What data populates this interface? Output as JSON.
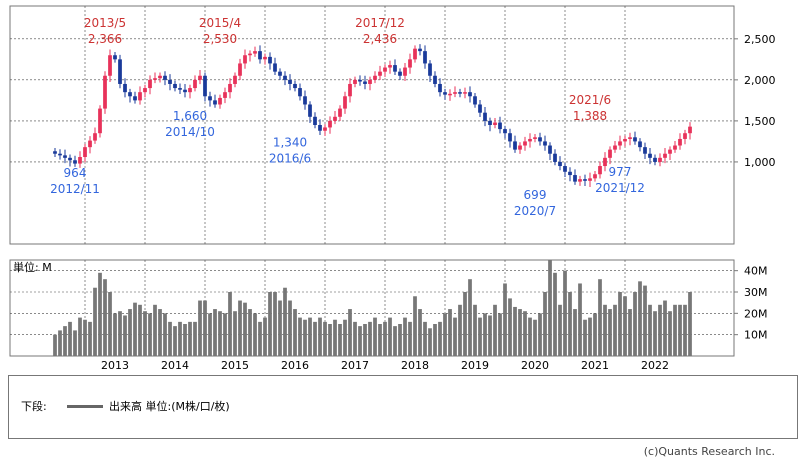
{
  "chart_data": [
    {
      "type": "candlestick",
      "panel": "price",
      "x_range": [
        "2012/07",
        "2022/10"
      ],
      "ylim": [
        0,
        2900
      ],
      "y_ticks": [
        1000,
        1500,
        2000,
        2500
      ],
      "y_tick_labels": [
        "1,000",
        "1,500",
        "2,000",
        "2,500"
      ],
      "grid": true,
      "colors": {
        "up": "#e8325a",
        "down": "#1a3a9a",
        "high_label": "#cc3333",
        "low_label": "#3366dd"
      },
      "monthly_close": [
        1100,
        1080,
        1050,
        1020,
        980,
        1060,
        1180,
        1260,
        1350,
        1650,
        2050,
        2300,
        2250,
        1950,
        1850,
        1800,
        1750,
        1850,
        1900,
        2000,
        2020,
        2050,
        2000,
        1950,
        1900,
        1880,
        1850,
        1900,
        2000,
        2050,
        1800,
        1750,
        1700,
        1780,
        1850,
        1950,
        2050,
        2200,
        2300,
        2320,
        2350,
        2250,
        2280,
        2200,
        2100,
        2050,
        2000,
        1950,
        1900,
        1800,
        1700,
        1550,
        1450,
        1380,
        1420,
        1500,
        1550,
        1650,
        1800,
        1950,
        2000,
        1980,
        1950,
        2000,
        2050,
        2100,
        2150,
        2180,
        2100,
        2050,
        2150,
        2250,
        2380,
        2350,
        2200,
        2050,
        1950,
        1850,
        1820,
        1830,
        1850,
        1840,
        1850,
        1800,
        1700,
        1600,
        1500,
        1450,
        1480,
        1400,
        1350,
        1250,
        1150,
        1200,
        1250,
        1280,
        1300,
        1250,
        1200,
        1100,
        1000,
        950,
        880,
        840,
        760,
        790,
        770,
        800,
        850,
        950,
        1050,
        1150,
        1200,
        1250,
        1280,
        1300,
        1250,
        1180,
        1100,
        1050,
        1000,
        1050,
        1100,
        1150,
        1200,
        1280,
        1350,
        1430
      ],
      "annotations": [
        {
          "kind": "high",
          "date": "2013/5",
          "value": "2,366"
        },
        {
          "kind": "high",
          "date": "2015/4",
          "value": "2,530"
        },
        {
          "kind": "high",
          "date": "2017/12",
          "value": "2,436"
        },
        {
          "kind": "high",
          "date": "2021/6",
          "value": "1,388"
        },
        {
          "kind": "low",
          "date": "2012/11",
          "value": "964"
        },
        {
          "kind": "low",
          "date": "2014/10",
          "value": "1,660"
        },
        {
          "kind": "low",
          "date": "2016/6",
          "value": "1,340"
        },
        {
          "kind": "low",
          "date": "2020/7",
          "value": "699"
        },
        {
          "kind": "low",
          "date": "2021/12",
          "value": "977"
        }
      ]
    },
    {
      "type": "bar",
      "panel": "volume",
      "unit_label": "単位: M",
      "ylim": [
        0,
        45
      ],
      "y_ticks": [
        10,
        20,
        30,
        40
      ],
      "y_tick_labels": [
        "10M",
        "20M",
        "30M",
        "40M"
      ],
      "x_tick_labels": [
        "2013",
        "2014",
        "2015",
        "2016",
        "2017",
        "2018",
        "2019",
        "2020",
        "2021",
        "2022"
      ],
      "bar_color": "#777777",
      "monthly_volume": [
        10,
        12,
        14,
        16,
        12,
        18,
        17,
        16,
        32,
        39,
        36,
        30,
        20,
        21,
        19,
        22,
        25,
        24,
        21,
        20,
        24,
        22,
        20,
        16,
        14,
        16,
        15,
        16,
        16,
        26,
        26,
        20,
        22,
        21,
        20,
        30,
        21,
        26,
        25,
        22,
        20,
        16,
        18,
        30,
        30,
        26,
        32,
        26,
        22,
        18,
        17,
        18,
        16,
        18,
        16,
        15,
        17,
        15,
        17,
        22,
        16,
        14,
        15,
        16,
        18,
        15,
        16,
        18,
        14,
        15,
        18,
        16,
        28,
        22,
        16,
        13,
        15,
        16,
        20,
        22,
        18,
        24,
        30,
        36,
        24,
        18,
        20,
        19,
        24,
        20,
        34,
        27,
        23,
        22,
        21,
        18,
        17,
        20,
        30,
        45,
        39,
        24,
        40,
        30,
        22,
        34,
        17,
        18,
        20,
        36,
        24,
        22,
        24,
        30,
        28,
        22,
        30,
        35,
        33,
        24,
        21,
        24,
        26,
        21,
        24,
        24,
        24,
        30
      ]
    }
  ],
  "legend": {
    "label": "下段:",
    "series": "出来高 単位:(M株/口/枚)"
  },
  "copyright": "(c)Quants Research Inc."
}
